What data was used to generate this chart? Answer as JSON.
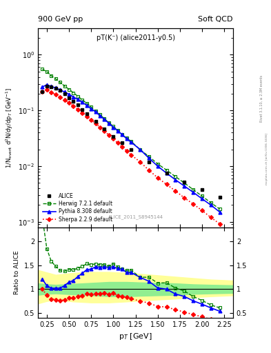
{
  "title_left": "900 GeV pp",
  "title_right": "Soft QCD",
  "subtitle": "pT(K⁻) (alice2011-y0.5)",
  "watermark": "ALICE_2011_S8945144",
  "right_label": "Rivet 3.1.10, ≥ 2.3M events",
  "right_label2": "mcplots.cern.ch [arXiv:1306.3436]",
  "ylabel_ratio": "Ratio to ALICE",
  "xlabel": "p$_T$ [GeV]",
  "alice_pt": [
    0.2,
    0.25,
    0.3,
    0.35,
    0.4,
    0.45,
    0.5,
    0.55,
    0.6,
    0.65,
    0.7,
    0.8,
    0.9,
    1.0,
    1.1,
    1.2,
    1.4,
    1.6,
    1.8,
    2.0,
    2.2
  ],
  "alice_vals": [
    0.22,
    0.27,
    0.265,
    0.25,
    0.23,
    0.2,
    0.17,
    0.148,
    0.125,
    0.105,
    0.088,
    0.064,
    0.047,
    0.034,
    0.026,
    0.02,
    0.012,
    0.0075,
    0.0052,
    0.0038,
    0.0028
  ],
  "herwig_pt": [
    0.2,
    0.25,
    0.3,
    0.35,
    0.4,
    0.45,
    0.5,
    0.55,
    0.6,
    0.65,
    0.7,
    0.75,
    0.8,
    0.85,
    0.9,
    0.95,
    1.0,
    1.05,
    1.1,
    1.15,
    1.2,
    1.3,
    1.4,
    1.5,
    1.6,
    1.7,
    1.8,
    1.9,
    2.0,
    2.1,
    2.2
  ],
  "herwig_vals": [
    0.55,
    0.5,
    0.42,
    0.37,
    0.32,
    0.275,
    0.24,
    0.208,
    0.18,
    0.155,
    0.135,
    0.115,
    0.098,
    0.084,
    0.071,
    0.06,
    0.052,
    0.044,
    0.037,
    0.032,
    0.028,
    0.02,
    0.015,
    0.011,
    0.0085,
    0.0065,
    0.005,
    0.0038,
    0.0029,
    0.0022,
    0.0017
  ],
  "pythia_pt": [
    0.2,
    0.25,
    0.3,
    0.35,
    0.4,
    0.45,
    0.5,
    0.55,
    0.6,
    0.65,
    0.7,
    0.75,
    0.8,
    0.85,
    0.9,
    0.95,
    1.0,
    1.05,
    1.1,
    1.15,
    1.2,
    1.3,
    1.4,
    1.5,
    1.6,
    1.7,
    1.8,
    1.9,
    2.0,
    2.1,
    2.2
  ],
  "pythia_vals": [
    0.265,
    0.29,
    0.27,
    0.255,
    0.235,
    0.215,
    0.195,
    0.175,
    0.158,
    0.14,
    0.124,
    0.108,
    0.094,
    0.081,
    0.069,
    0.059,
    0.05,
    0.043,
    0.037,
    0.031,
    0.027,
    0.02,
    0.014,
    0.01,
    0.0075,
    0.0057,
    0.0044,
    0.0034,
    0.0026,
    0.002,
    0.0015
  ],
  "sherpa_pt": [
    0.2,
    0.25,
    0.3,
    0.35,
    0.4,
    0.45,
    0.5,
    0.55,
    0.6,
    0.65,
    0.7,
    0.75,
    0.8,
    0.85,
    0.9,
    0.95,
    1.0,
    1.05,
    1.1,
    1.15,
    1.2,
    1.3,
    1.4,
    1.5,
    1.6,
    1.7,
    1.8,
    1.9,
    2.0,
    2.1,
    2.2
  ],
  "sherpa_vals": [
    0.22,
    0.235,
    0.21,
    0.195,
    0.175,
    0.155,
    0.138,
    0.12,
    0.105,
    0.091,
    0.079,
    0.068,
    0.058,
    0.05,
    0.043,
    0.036,
    0.031,
    0.026,
    0.022,
    0.019,
    0.016,
    0.012,
    0.0085,
    0.0062,
    0.0047,
    0.0036,
    0.0027,
    0.0021,
    0.0016,
    0.0012,
    0.00092
  ],
  "band_inner_color": "#90EE90",
  "band_outer_color": "#FFFF99",
  "band_pt": [
    0.15,
    0.25,
    0.35,
    0.45,
    0.55,
    0.65,
    0.75,
    0.85,
    0.95,
    1.05,
    1.15,
    1.3,
    1.5,
    1.7,
    1.9,
    2.1,
    2.35
  ],
  "band_inner_lo": [
    0.88,
    0.9,
    0.91,
    0.9,
    0.89,
    0.88,
    0.87,
    0.86,
    0.85,
    0.85,
    0.85,
    0.86,
    0.87,
    0.88,
    0.9,
    0.91,
    0.92
  ],
  "band_inner_hi": [
    1.12,
    1.1,
    1.09,
    1.1,
    1.11,
    1.12,
    1.13,
    1.14,
    1.15,
    1.15,
    1.15,
    1.14,
    1.13,
    1.12,
    1.1,
    1.09,
    1.08
  ],
  "band_outer_lo": [
    0.7,
    0.75,
    0.78,
    0.76,
    0.74,
    0.73,
    0.72,
    0.72,
    0.72,
    0.73,
    0.74,
    0.76,
    0.78,
    0.8,
    0.83,
    0.85,
    0.87
  ],
  "band_outer_hi": [
    1.4,
    1.35,
    1.3,
    1.32,
    1.34,
    1.35,
    1.36,
    1.36,
    1.36,
    1.35,
    1.34,
    1.32,
    1.29,
    1.26,
    1.23,
    1.2,
    1.18
  ]
}
